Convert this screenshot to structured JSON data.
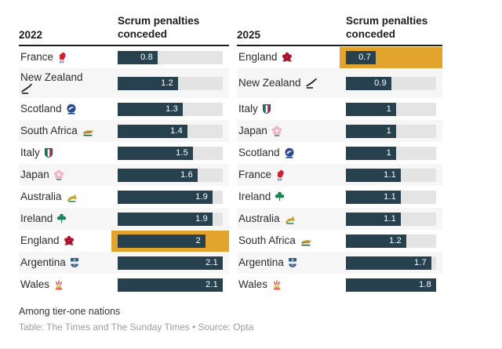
{
  "colors": {
    "bar": "#27424e",
    "track": "#e4e4e4",
    "highlight": "#e2a42d",
    "stripe": "#f6f6f6",
    "rule": "#1d1d1b"
  },
  "meta": {
    "footnote": "Among tier-one nations",
    "credit": "Table: The Times and The Sunday Times • Source: Opta"
  },
  "tables": [
    {
      "year": "2022",
      "value_header": "Scrum penalties conceded",
      "max": 2.1,
      "rows": [
        {
          "team": "France",
          "value": 0.8,
          "display": "0.8",
          "emblem": "france",
          "highlight": false
        },
        {
          "team": "New Zealand",
          "value": 1.2,
          "display": "1.2",
          "emblem": "new-zealand",
          "highlight": false,
          "tall": true,
          "emblem_below": true
        },
        {
          "team": "Scotland",
          "value": 1.3,
          "display": "1.3",
          "emblem": "scotland",
          "highlight": false
        },
        {
          "team": "South Africa",
          "value": 1.4,
          "display": "1.4",
          "emblem": "south-africa",
          "highlight": false
        },
        {
          "team": "Italy",
          "value": 1.5,
          "display": "1.5",
          "emblem": "italy",
          "highlight": false
        },
        {
          "team": "Japan",
          "value": 1.6,
          "display": "1.6",
          "emblem": "japan",
          "highlight": false
        },
        {
          "team": "Australia",
          "value": 1.9,
          "display": "1.9",
          "emblem": "australia",
          "highlight": false
        },
        {
          "team": "Ireland",
          "value": 1.9,
          "display": "1.9",
          "emblem": "ireland",
          "highlight": false
        },
        {
          "team": "England",
          "value": 2.0,
          "display": "2",
          "emblem": "england",
          "highlight": true
        },
        {
          "team": "Argentina",
          "value": 2.1,
          "display": "2.1",
          "emblem": "argentina",
          "highlight": false
        },
        {
          "team": "Wales",
          "value": 2.1,
          "display": "2.1",
          "emblem": "wales",
          "highlight": false
        }
      ]
    },
    {
      "year": "2025",
      "value_header": "Scrum penalties conceded",
      "max": 1.8,
      "rows": [
        {
          "team": "England",
          "value": 0.7,
          "display": "0.7",
          "emblem": "england",
          "highlight": true
        },
        {
          "team": "New Zealand",
          "value": 0.9,
          "display": "0.9",
          "emblem": "new-zealand",
          "highlight": false,
          "tall": true
        },
        {
          "team": "Italy",
          "value": 1.0,
          "display": "1",
          "emblem": "italy",
          "highlight": false
        },
        {
          "team": "Japan",
          "value": 1.0,
          "display": "1",
          "emblem": "japan",
          "highlight": false
        },
        {
          "team": "Scotland",
          "value": 1.0,
          "display": "1",
          "emblem": "scotland",
          "highlight": false
        },
        {
          "team": "France",
          "value": 1.1,
          "display": "1.1",
          "emblem": "france",
          "highlight": false
        },
        {
          "team": "Ireland",
          "value": 1.1,
          "display": "1.1",
          "emblem": "ireland",
          "highlight": false
        },
        {
          "team": "Australia",
          "value": 1.1,
          "display": "1.1",
          "emblem": "australia",
          "highlight": false
        },
        {
          "team": "South Africa",
          "value": 1.2,
          "display": "1.2",
          "emblem": "south-africa",
          "highlight": false
        },
        {
          "team": "Argentina",
          "value": 1.7,
          "display": "1.7",
          "emblem": "argentina",
          "highlight": false
        },
        {
          "team": "Wales",
          "value": 1.8,
          "display": "1.8",
          "emblem": "wales",
          "highlight": false
        }
      ]
    }
  ],
  "chart_data": [
    {
      "type": "bar",
      "title": "Scrum penalties conceded",
      "subtitle": "2022",
      "categories": [
        "France",
        "New Zealand",
        "Scotland",
        "South Africa",
        "Italy",
        "Japan",
        "Australia",
        "Ireland",
        "England",
        "Argentina",
        "Wales"
      ],
      "values": [
        0.8,
        1.2,
        1.3,
        1.4,
        1.5,
        1.6,
        1.9,
        1.9,
        2.0,
        2.1,
        2.1
      ],
      "highlight_category": "England",
      "xlabel": "",
      "ylabel": "",
      "xlim": [
        0,
        2.1
      ],
      "orientation": "horizontal",
      "grid": false,
      "legend": false
    },
    {
      "type": "bar",
      "title": "Scrum penalties conceded",
      "subtitle": "2025",
      "categories": [
        "England",
        "New Zealand",
        "Italy",
        "Japan",
        "Scotland",
        "France",
        "Ireland",
        "Australia",
        "South Africa",
        "Argentina",
        "Wales"
      ],
      "values": [
        0.7,
        0.9,
        1.0,
        1.0,
        1.0,
        1.1,
        1.1,
        1.1,
        1.2,
        1.7,
        1.8
      ],
      "highlight_category": "England",
      "xlabel": "",
      "ylabel": "",
      "xlim": [
        0,
        1.8
      ],
      "orientation": "horizontal",
      "grid": false,
      "legend": false
    }
  ]
}
